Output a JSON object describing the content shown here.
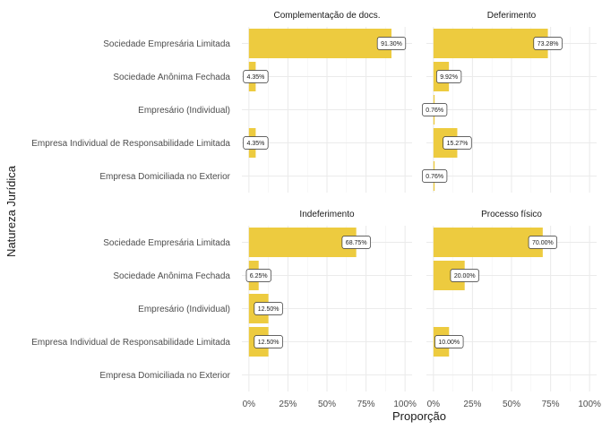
{
  "chart_data": {
    "type": "bar",
    "orientation": "horizontal",
    "xlabel": "Proporção",
    "ylabel": "Natureza Jurídica",
    "xlim": [
      0,
      1
    ],
    "x_ticks": [
      "0%",
      "25%",
      "50%",
      "75%",
      "100%"
    ],
    "grid": true,
    "categories": [
      "Sociedade Empresária Limitada",
      "Sociedade Anônima Fechada",
      "Empresário (Individual)",
      "Empresa Individual de Responsabilidade Limitada",
      "Empresa Domiciliada no Exterior"
    ],
    "bar_color": "#EDCB3F",
    "panels": [
      {
        "title": "Complementação de docs.",
        "values": [
          0.913,
          0.0435,
          null,
          0.0435,
          null
        ],
        "labels": [
          "91.30%",
          "4.35%",
          null,
          "4.35%",
          null
        ]
      },
      {
        "title": "Deferimento",
        "values": [
          0.7328,
          0.0992,
          0.0076,
          0.1527,
          0.0076
        ],
        "labels": [
          "73.28%",
          "9.92%",
          "0.76%",
          "15.27%",
          "0.76%"
        ]
      },
      {
        "title": "Indeferimento",
        "values": [
          0.6875,
          0.0625,
          0.125,
          0.125,
          null
        ],
        "labels": [
          "68.75%",
          "6.25%",
          "12.50%",
          "12.50%",
          null
        ]
      },
      {
        "title": "Processo físico",
        "values": [
          0.7,
          0.2,
          null,
          0.1,
          null
        ],
        "labels": [
          "70.00%",
          "20.00%",
          null,
          "10.00%",
          null
        ]
      }
    ]
  }
}
